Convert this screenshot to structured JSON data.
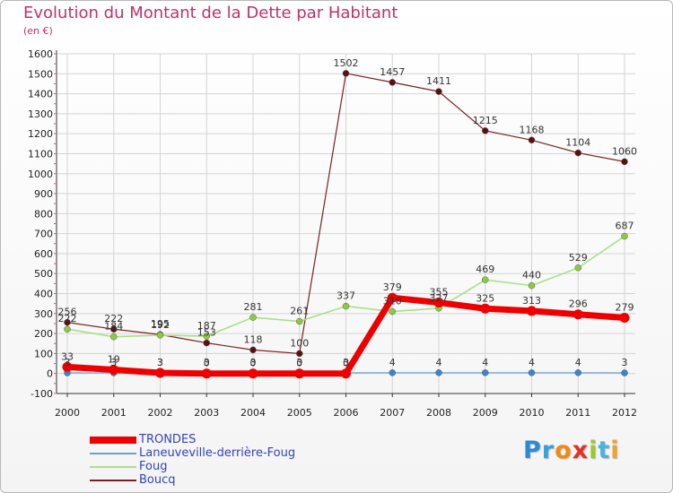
{
  "title": "Evolution du Montant de la Dette par Habitant",
  "subtitle": "(en €)",
  "logo": {
    "letters": [
      "P",
      "r",
      "o",
      "x",
      "i",
      "t",
      "i"
    ],
    "colors": [
      "#2a8ad4",
      "#3aa0dd",
      "#f08a10",
      "#e2322a",
      "#9bc832",
      "#49b3e3",
      "#f2a12a"
    ]
  },
  "chart_data": {
    "type": "line",
    "x": [
      2000,
      2001,
      2002,
      2003,
      2004,
      2005,
      2006,
      2007,
      2008,
      2009,
      2010,
      2011,
      2012
    ],
    "ylim": [
      -100,
      1600
    ],
    "yticks": [
      -100,
      0,
      100,
      200,
      300,
      400,
      500,
      600,
      700,
      800,
      900,
      1000,
      1100,
      1200,
      1300,
      1400,
      1500,
      1600
    ],
    "grid": true,
    "legend_position": "bottom-left",
    "series": [
      {
        "name": "Boucq",
        "color": "#7a2020",
        "marker": "#5a1010",
        "width": 1.2,
        "values": [
          256,
          222,
          195,
          153,
          118,
          100,
          1502,
          1457,
          1411,
          1215,
          1168,
          1104,
          1060
        ],
        "labels": [
          "256",
          "222",
          "195",
          "153",
          "118",
          "100",
          "1502",
          "1457",
          "1411",
          "1215",
          "1168",
          "1104",
          "1060"
        ]
      },
      {
        "name": "Foug",
        "color": "#a8e08a",
        "marker": "#8ccc3c",
        "width": 1.6,
        "values": [
          222,
          184,
          192,
          187,
          281,
          261,
          337,
          310,
          327,
          469,
          440,
          529,
          687
        ],
        "labels": [
          "222",
          "184",
          "192",
          "187",
          "281",
          "261",
          "337",
          "310",
          "327",
          "469",
          "440",
          "529",
          "687"
        ]
      },
      {
        "name": "Laneuveville-derrière-Foug",
        "color": "#6aa0cc",
        "marker": "#3d86c6",
        "width": 1.2,
        "values": [
          3,
          3,
          3,
          3,
          3,
          3,
          3,
          4,
          4,
          4,
          4,
          4,
          3
        ],
        "labels": [
          "3",
          "3",
          "3",
          "3",
          "3",
          "3",
          "3",
          "4",
          "4",
          "4",
          "4",
          "4",
          "3"
        ]
      },
      {
        "name": "TRONDES",
        "color": "#ee0000",
        "marker": "#ee0000",
        "width": 7,
        "values": [
          33,
          19,
          3,
          0,
          0,
          0,
          0,
          379,
          355,
          325,
          313,
          296,
          279
        ],
        "labels": [
          "33",
          "19",
          "3",
          "0",
          "0",
          "0",
          "0",
          "379",
          "355",
          "325",
          "313",
          "296",
          "279"
        ]
      }
    ],
    "legend_order": [
      "TRONDES",
      "Laneuveville-derrière-Foug",
      "Foug",
      "Boucq"
    ]
  }
}
